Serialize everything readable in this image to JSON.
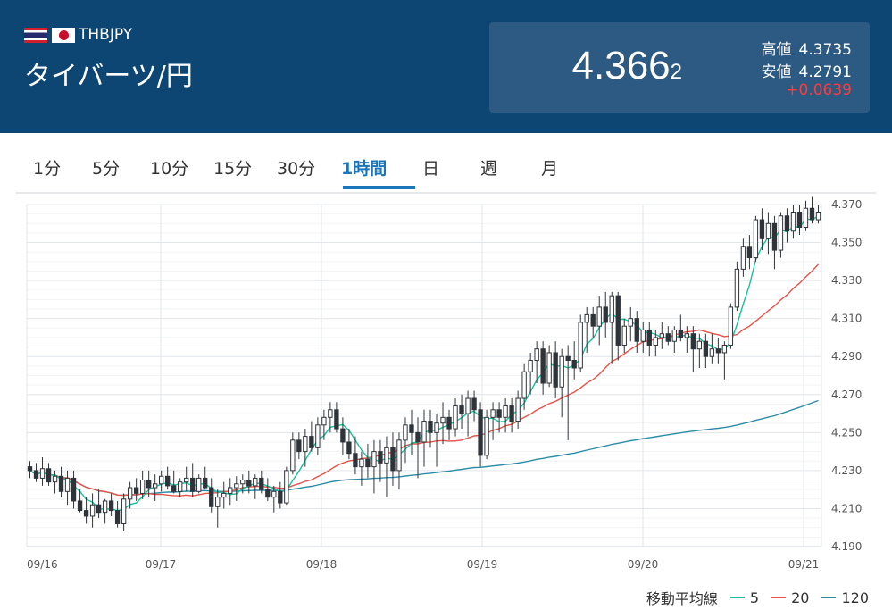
{
  "header": {
    "code": "THBJPY",
    "name": "タイバーツ/円",
    "price_main": "4.366",
    "price_small": "2",
    "high_label": "高値",
    "high": "4.3735",
    "low_label": "安値",
    "low": "4.2791",
    "change": "+0.0639",
    "colors": {
      "background": "#0e4673",
      "box": "#2c5a82",
      "change": "#ff3b3b"
    }
  },
  "tabs": [
    "1分",
    "5分",
    "10分",
    "15分",
    "30分",
    "1時間",
    "日",
    "週",
    "月"
  ],
  "active_tab": "1時間",
  "legend": {
    "label": "移動平均線",
    "items": [
      "5",
      "20",
      "120"
    ]
  },
  "chart_data": {
    "type": "candlestick",
    "ylim": [
      4.19,
      4.37
    ],
    "y_ticks": [
      "4.370",
      "4.350",
      "4.330",
      "4.310",
      "4.290",
      "4.270",
      "4.250",
      "4.230",
      "4.210",
      "4.190"
    ],
    "x_labels": [
      "09/16",
      "09/17",
      "09/18",
      "09/19",
      "09/20",
      "09/21"
    ],
    "grid": true,
    "colors": {
      "up": "#ffffff",
      "down": "#2f343a",
      "ma5": "#1bbf9b",
      "ma20": "#e5534b",
      "ma120": "#2b8ca8"
    },
    "candles": [
      {
        "o": 4.232,
        "h": 4.235,
        "l": 4.226,
        "c": 4.23
      },
      {
        "o": 4.23,
        "h": 4.234,
        "l": 4.224,
        "c": 4.226
      },
      {
        "o": 4.226,
        "h": 4.237,
        "l": 4.222,
        "c": 4.231
      },
      {
        "o": 4.231,
        "h": 4.234,
        "l": 4.222,
        "c": 4.224
      },
      {
        "o": 4.224,
        "h": 4.23,
        "l": 4.218,
        "c": 4.227
      },
      {
        "o": 4.227,
        "h": 4.232,
        "l": 4.216,
        "c": 4.219
      },
      {
        "o": 4.219,
        "h": 4.23,
        "l": 4.212,
        "c": 4.226
      },
      {
        "o": 4.226,
        "h": 4.23,
        "l": 4.21,
        "c": 4.214
      },
      {
        "o": 4.214,
        "h": 4.22,
        "l": 4.208,
        "c": 4.209
      },
      {
        "o": 4.209,
        "h": 4.216,
        "l": 4.202,
        "c": 4.206
      },
      {
        "o": 4.206,
        "h": 4.218,
        "l": 4.2,
        "c": 4.212
      },
      {
        "o": 4.212,
        "h": 4.22,
        "l": 4.205,
        "c": 4.208
      },
      {
        "o": 4.208,
        "h": 4.215,
        "l": 4.202,
        "c": 4.214
      },
      {
        "o": 4.214,
        "h": 4.218,
        "l": 4.206,
        "c": 4.209
      },
      {
        "o": 4.209,
        "h": 4.214,
        "l": 4.2,
        "c": 4.202
      },
      {
        "o": 4.202,
        "h": 4.218,
        "l": 4.198,
        "c": 4.215
      },
      {
        "o": 4.215,
        "h": 4.224,
        "l": 4.21,
        "c": 4.221
      },
      {
        "o": 4.221,
        "h": 4.226,
        "l": 4.214,
        "c": 4.218
      },
      {
        "o": 4.218,
        "h": 4.23,
        "l": 4.215,
        "c": 4.225
      },
      {
        "o": 4.225,
        "h": 4.23,
        "l": 4.216,
        "c": 4.221
      },
      {
        "o": 4.221,
        "h": 4.228,
        "l": 4.214,
        "c": 4.223
      },
      {
        "o": 4.223,
        "h": 4.23,
        "l": 4.219,
        "c": 4.227
      },
      {
        "o": 4.227,
        "h": 4.232,
        "l": 4.22,
        "c": 4.222
      },
      {
        "o": 4.222,
        "h": 4.23,
        "l": 4.218,
        "c": 4.219
      },
      {
        "o": 4.219,
        "h": 4.226,
        "l": 4.216,
        "c": 4.224
      },
      {
        "o": 4.224,
        "h": 4.232,
        "l": 4.219,
        "c": 4.226
      },
      {
        "o": 4.226,
        "h": 4.234,
        "l": 4.216,
        "c": 4.219
      },
      {
        "o": 4.219,
        "h": 4.228,
        "l": 4.218,
        "c": 4.226
      },
      {
        "o": 4.226,
        "h": 4.232,
        "l": 4.22,
        "c": 4.221
      },
      {
        "o": 4.221,
        "h": 4.226,
        "l": 4.208,
        "c": 4.211
      },
      {
        "o": 4.211,
        "h": 4.22,
        "l": 4.2,
        "c": 4.216
      },
      {
        "o": 4.216,
        "h": 4.224,
        "l": 4.21,
        "c": 4.218
      },
      {
        "o": 4.218,
        "h": 4.226,
        "l": 4.212,
        "c": 4.221
      },
      {
        "o": 4.221,
        "h": 4.227,
        "l": 4.214,
        "c": 4.223
      },
      {
        "o": 4.223,
        "h": 4.228,
        "l": 4.218,
        "c": 4.225
      },
      {
        "o": 4.225,
        "h": 4.23,
        "l": 4.218,
        "c": 4.222
      },
      {
        "o": 4.222,
        "h": 4.228,
        "l": 4.215,
        "c": 4.226
      },
      {
        "o": 4.226,
        "h": 4.23,
        "l": 4.218,
        "c": 4.22
      },
      {
        "o": 4.22,
        "h": 4.226,
        "l": 4.214,
        "c": 4.216
      },
      {
        "o": 4.216,
        "h": 4.222,
        "l": 4.208,
        "c": 4.219
      },
      {
        "o": 4.219,
        "h": 4.224,
        "l": 4.21,
        "c": 4.213
      },
      {
        "o": 4.213,
        "h": 4.232,
        "l": 4.212,
        "c": 4.23
      },
      {
        "o": 4.23,
        "h": 4.25,
        "l": 4.228,
        "c": 4.246
      },
      {
        "o": 4.246,
        "h": 4.25,
        "l": 4.236,
        "c": 4.24
      },
      {
        "o": 4.24,
        "h": 4.252,
        "l": 4.232,
        "c": 4.248
      },
      {
        "o": 4.248,
        "h": 4.256,
        "l": 4.24,
        "c": 4.242
      },
      {
        "o": 4.242,
        "h": 4.258,
        "l": 4.238,
        "c": 4.254
      },
      {
        "o": 4.254,
        "h": 4.262,
        "l": 4.246,
        "c": 4.258
      },
      {
        "o": 4.258,
        "h": 4.266,
        "l": 4.25,
        "c": 4.262
      },
      {
        "o": 4.262,
        "h": 4.266,
        "l": 4.25,
        "c": 4.252
      },
      {
        "o": 4.252,
        "h": 4.258,
        "l": 4.238,
        "c": 4.245
      },
      {
        "o": 4.245,
        "h": 4.252,
        "l": 4.236,
        "c": 4.239
      },
      {
        "o": 4.239,
        "h": 4.248,
        "l": 4.228,
        "c": 4.232
      },
      {
        "o": 4.232,
        "h": 4.24,
        "l": 4.222,
        "c": 4.236
      },
      {
        "o": 4.236,
        "h": 4.244,
        "l": 4.226,
        "c": 4.232
      },
      {
        "o": 4.232,
        "h": 4.246,
        "l": 4.218,
        "c": 4.24
      },
      {
        "o": 4.24,
        "h": 4.246,
        "l": 4.224,
        "c": 4.234
      },
      {
        "o": 4.234,
        "h": 4.248,
        "l": 4.216,
        "c": 4.242
      },
      {
        "o": 4.242,
        "h": 4.25,
        "l": 4.222,
        "c": 4.23
      },
      {
        "o": 4.23,
        "h": 4.25,
        "l": 4.22,
        "c": 4.246
      },
      {
        "o": 4.246,
        "h": 4.258,
        "l": 4.234,
        "c": 4.254
      },
      {
        "o": 4.254,
        "h": 4.262,
        "l": 4.238,
        "c": 4.25
      },
      {
        "o": 4.25,
        "h": 4.258,
        "l": 4.226,
        "c": 4.245
      },
      {
        "o": 4.245,
        "h": 4.262,
        "l": 4.232,
        "c": 4.256
      },
      {
        "o": 4.256,
        "h": 4.262,
        "l": 4.242,
        "c": 4.25
      },
      {
        "o": 4.25,
        "h": 4.26,
        "l": 4.232,
        "c": 4.255
      },
      {
        "o": 4.255,
        "h": 4.266,
        "l": 4.244,
        "c": 4.258
      },
      {
        "o": 4.258,
        "h": 4.262,
        "l": 4.246,
        "c": 4.252
      },
      {
        "o": 4.252,
        "h": 4.268,
        "l": 4.248,
        "c": 4.264
      },
      {
        "o": 4.264,
        "h": 4.27,
        "l": 4.252,
        "c": 4.26
      },
      {
        "o": 4.26,
        "h": 4.272,
        "l": 4.248,
        "c": 4.268
      },
      {
        "o": 4.268,
        "h": 4.272,
        "l": 4.256,
        "c": 4.262
      },
      {
        "o": 4.262,
        "h": 4.266,
        "l": 4.232,
        "c": 4.238
      },
      {
        "o": 4.238,
        "h": 4.262,
        "l": 4.236,
        "c": 4.258
      },
      {
        "o": 4.258,
        "h": 4.266,
        "l": 4.246,
        "c": 4.262
      },
      {
        "o": 4.262,
        "h": 4.266,
        "l": 4.25,
        "c": 4.258
      },
      {
        "o": 4.258,
        "h": 4.268,
        "l": 4.25,
        "c": 4.264
      },
      {
        "o": 4.264,
        "h": 4.268,
        "l": 4.25,
        "c": 4.256
      },
      {
        "o": 4.256,
        "h": 4.272,
        "l": 4.252,
        "c": 4.268
      },
      {
        "o": 4.268,
        "h": 4.286,
        "l": 4.262,
        "c": 4.282
      },
      {
        "o": 4.282,
        "h": 4.292,
        "l": 4.27,
        "c": 4.288
      },
      {
        "o": 4.288,
        "h": 4.298,
        "l": 4.276,
        "c": 4.294
      },
      {
        "o": 4.294,
        "h": 4.298,
        "l": 4.27,
        "c": 4.276
      },
      {
        "o": 4.276,
        "h": 4.296,
        "l": 4.274,
        "c": 4.292
      },
      {
        "o": 4.292,
        "h": 4.298,
        "l": 4.268,
        "c": 4.274
      },
      {
        "o": 4.274,
        "h": 4.294,
        "l": 4.258,
        "c": 4.29
      },
      {
        "o": 4.29,
        "h": 4.296,
        "l": 4.246,
        "c": 4.288
      },
      {
        "o": 4.288,
        "h": 4.298,
        "l": 4.278,
        "c": 4.284
      },
      {
        "o": 4.284,
        "h": 4.312,
        "l": 4.282,
        "c": 4.308
      },
      {
        "o": 4.308,
        "h": 4.316,
        "l": 4.292,
        "c": 4.312
      },
      {
        "o": 4.312,
        "h": 4.316,
        "l": 4.3,
        "c": 4.306
      },
      {
        "o": 4.306,
        "h": 4.322,
        "l": 4.296,
        "c": 4.316
      },
      {
        "o": 4.316,
        "h": 4.324,
        "l": 4.3,
        "c": 4.308
      },
      {
        "o": 4.308,
        "h": 4.324,
        "l": 4.286,
        "c": 4.322
      },
      {
        "o": 4.322,
        "h": 4.324,
        "l": 4.288,
        "c": 4.296
      },
      {
        "o": 4.296,
        "h": 4.31,
        "l": 4.292,
        "c": 4.306
      },
      {
        "o": 4.306,
        "h": 4.316,
        "l": 4.298,
        "c": 4.31
      },
      {
        "o": 4.31,
        "h": 4.314,
        "l": 4.292,
        "c": 4.298
      },
      {
        "o": 4.298,
        "h": 4.308,
        "l": 4.292,
        "c": 4.304
      },
      {
        "o": 4.304,
        "h": 4.308,
        "l": 4.29,
        "c": 4.296
      },
      {
        "o": 4.296,
        "h": 4.304,
        "l": 4.29,
        "c": 4.3
      },
      {
        "o": 4.3,
        "h": 4.308,
        "l": 4.294,
        "c": 4.302
      },
      {
        "o": 4.302,
        "h": 4.306,
        "l": 4.296,
        "c": 4.298
      },
      {
        "o": 4.298,
        "h": 4.306,
        "l": 4.292,
        "c": 4.304
      },
      {
        "o": 4.304,
        "h": 4.312,
        "l": 4.298,
        "c": 4.3
      },
      {
        "o": 4.3,
        "h": 4.306,
        "l": 4.292,
        "c": 4.302
      },
      {
        "o": 4.302,
        "h": 4.306,
        "l": 4.282,
        "c": 4.294
      },
      {
        "o": 4.294,
        "h": 4.302,
        "l": 4.284,
        "c": 4.298
      },
      {
        "o": 4.298,
        "h": 4.302,
        "l": 4.284,
        "c": 4.29
      },
      {
        "o": 4.29,
        "h": 4.302,
        "l": 4.286,
        "c": 4.294
      },
      {
        "o": 4.294,
        "h": 4.3,
        "l": 4.286,
        "c": 4.292
      },
      {
        "o": 4.292,
        "h": 4.298,
        "l": 4.278,
        "c": 4.296
      },
      {
        "o": 4.296,
        "h": 4.318,
        "l": 4.294,
        "c": 4.316
      },
      {
        "o": 4.316,
        "h": 4.34,
        "l": 4.314,
        "c": 4.336
      },
      {
        "o": 4.336,
        "h": 4.352,
        "l": 4.332,
        "c": 4.348
      },
      {
        "o": 4.348,
        "h": 4.354,
        "l": 4.336,
        "c": 4.342
      },
      {
        "o": 4.342,
        "h": 4.364,
        "l": 4.34,
        "c": 4.362
      },
      {
        "o": 4.362,
        "h": 4.368,
        "l": 4.346,
        "c": 4.352
      },
      {
        "o": 4.352,
        "h": 4.366,
        "l": 4.344,
        "c": 4.36
      },
      {
        "o": 4.36,
        "h": 4.364,
        "l": 4.336,
        "c": 4.346
      },
      {
        "o": 4.346,
        "h": 4.366,
        "l": 4.342,
        "c": 4.364
      },
      {
        "o": 4.364,
        "h": 4.368,
        "l": 4.35,
        "c": 4.356
      },
      {
        "o": 4.356,
        "h": 4.37,
        "l": 4.352,
        "c": 4.366
      },
      {
        "o": 4.366,
        "h": 4.37,
        "l": 4.354,
        "c": 4.358
      },
      {
        "o": 4.358,
        "h": 4.372,
        "l": 4.356,
        "c": 4.368
      },
      {
        "o": 4.368,
        "h": 4.374,
        "l": 4.36,
        "c": 4.362
      },
      {
        "o": 4.362,
        "h": 4.37,
        "l": 4.36,
        "c": 4.366
      }
    ]
  }
}
